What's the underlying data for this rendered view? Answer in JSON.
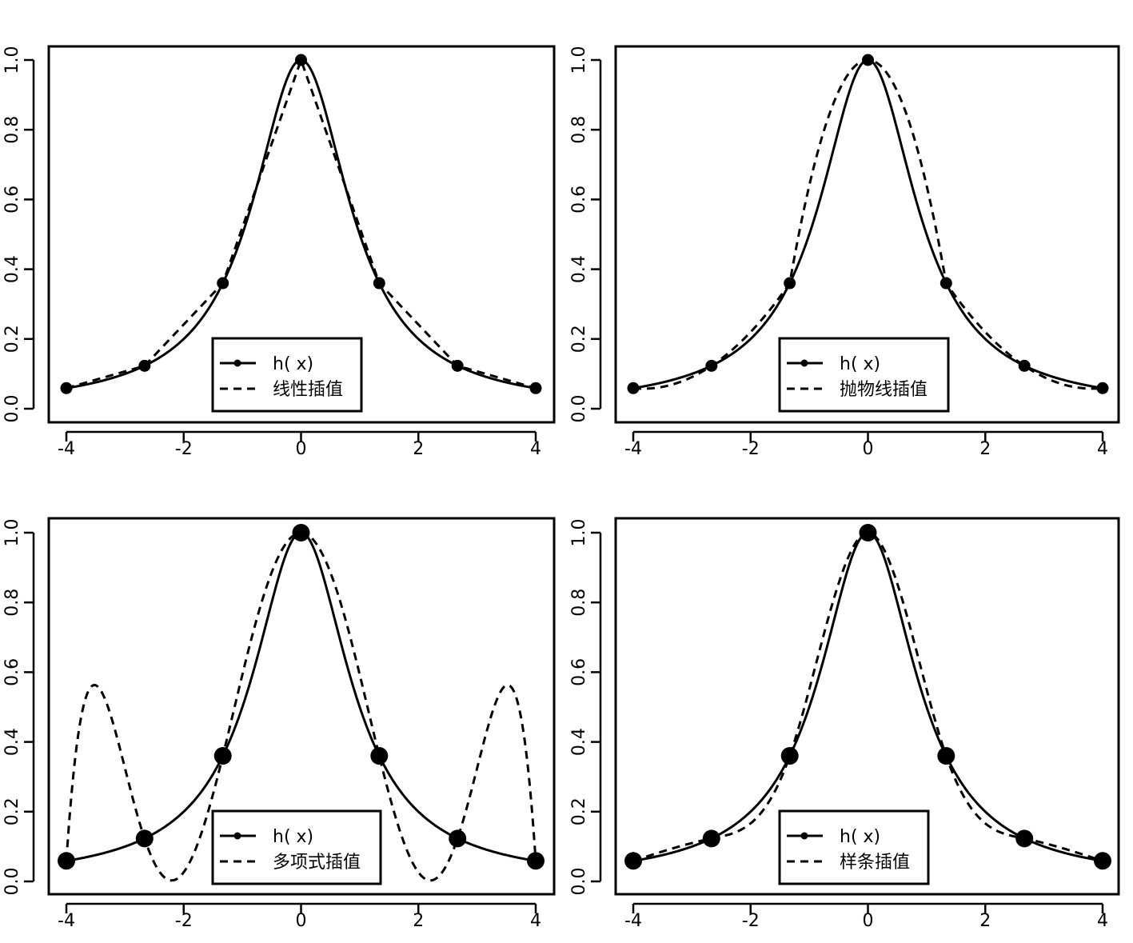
{
  "chart_data": [
    {
      "type": "line",
      "panel": "top-left",
      "xlim": [
        -4,
        4
      ],
      "ylim": [
        0,
        1
      ],
      "xticks": [
        -4,
        -2,
        0,
        2,
        4
      ],
      "yticks": [
        0.0,
        0.2,
        0.4,
        0.6,
        0.8,
        1.0
      ],
      "xtick_labels": [
        "-4",
        "-2",
        "0",
        "2",
        "4"
      ],
      "ytick_labels": [
        "0.0",
        "0.2",
        "0.4",
        "0.6",
        "0.8",
        "1.0"
      ],
      "legend_position": "bottom-center",
      "marker_size": "small",
      "series": [
        {
          "name": "h( x)",
          "style": "solid",
          "function": "1/(1+x^2)"
        },
        {
          "name": "线性插值",
          "style": "dashed",
          "method": "piecewise-linear"
        }
      ],
      "nodes": {
        "x": [
          -4,
          -2.667,
          -1.333,
          0,
          1.333,
          2.667,
          4
        ],
        "y": [
          0.059,
          0.123,
          0.36,
          1.0,
          0.36,
          0.123,
          0.059
        ]
      }
    },
    {
      "type": "line",
      "panel": "top-right",
      "xlim": [
        -4,
        4
      ],
      "ylim": [
        0,
        1
      ],
      "xticks": [
        -4,
        -2,
        0,
        2,
        4
      ],
      "yticks": [
        0.0,
        0.2,
        0.4,
        0.6,
        0.8,
        1.0
      ],
      "xtick_labels": [
        "-4",
        "-2",
        "0",
        "2",
        "4"
      ],
      "ytick_labels": [
        "0.0",
        "0.2",
        "0.4",
        "0.6",
        "0.8",
        "1.0"
      ],
      "legend_position": "bottom-center",
      "marker_size": "small",
      "series": [
        {
          "name": "h( x)",
          "style": "solid",
          "function": "1/(1+x^2)"
        },
        {
          "name": "抛物线插值",
          "style": "dashed",
          "method": "piecewise-quadratic"
        }
      ],
      "nodes": {
        "x": [
          -4,
          -2.667,
          -1.333,
          0,
          1.333,
          2.667,
          4
        ],
        "y": [
          0.059,
          0.123,
          0.36,
          1.0,
          0.36,
          0.123,
          0.059
        ]
      }
    },
    {
      "type": "line",
      "panel": "bottom-left",
      "xlim": [
        -4,
        4
      ],
      "ylim": [
        0,
        1
      ],
      "xticks": [
        -4,
        -2,
        0,
        2,
        4
      ],
      "yticks": [
        0.0,
        0.2,
        0.4,
        0.6,
        0.8,
        1.0
      ],
      "xtick_labels": [
        "-4",
        "-2",
        "0",
        "2",
        "4"
      ],
      "ytick_labels": [
        "0.0",
        "0.2",
        "0.4",
        "0.6",
        "0.8",
        "1.0"
      ],
      "legend_position": "bottom-center",
      "marker_size": "large",
      "series": [
        {
          "name": "h( x)",
          "style": "solid",
          "function": "1/(1+x^2)"
        },
        {
          "name": "多项式插值",
          "style": "dashed",
          "method": "lagrange-polynomial"
        }
      ],
      "nodes": {
        "x": [
          -4,
          -2.667,
          -1.333,
          0,
          1.333,
          2.667,
          4
        ],
        "y": [
          0.059,
          0.123,
          0.36,
          1.0,
          0.36,
          0.123,
          0.059
        ]
      }
    },
    {
      "type": "line",
      "panel": "bottom-right",
      "xlim": [
        -4,
        4
      ],
      "ylim": [
        0,
        1
      ],
      "xticks": [
        -4,
        -2,
        0,
        2,
        4
      ],
      "yticks": [
        0.0,
        0.2,
        0.4,
        0.6,
        0.8,
        1.0
      ],
      "xtick_labels": [
        "-4",
        "-2",
        "0",
        "2",
        "4"
      ],
      "ytick_labels": [
        "0.0",
        "0.2",
        "0.4",
        "0.6",
        "0.8",
        "1.0"
      ],
      "legend_position": "bottom-center",
      "marker_size": "large",
      "series": [
        {
          "name": "h( x)",
          "style": "solid",
          "function": "1/(1+x^2)"
        },
        {
          "name": "样条插值",
          "style": "dashed",
          "method": "cubic-spline"
        }
      ],
      "nodes": {
        "x": [
          -4,
          -2.667,
          -1.333,
          0,
          1.333,
          2.667,
          4
        ],
        "y": [
          0.059,
          0.123,
          0.36,
          1.0,
          0.36,
          0.123,
          0.059
        ]
      }
    }
  ]
}
